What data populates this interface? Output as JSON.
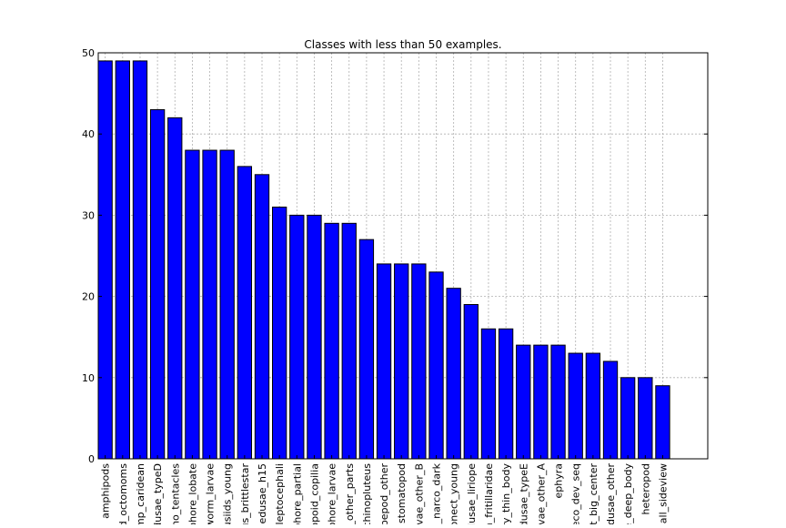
{
  "chart_data": {
    "type": "bar",
    "title": "Classes with less than 50 examples.",
    "xlabel": "",
    "ylabel": "",
    "ylim": [
      0,
      50
    ],
    "yticks": [
      0,
      10,
      20,
      30,
      40,
      50
    ],
    "grid": true,
    "bar_color": "#0000ff",
    "edge_color": "#000000",
    "categories": [
      "amphipods",
      "id_octomoms",
      "imp_caridean",
      "edusae_typeD",
      "_no_tentacles",
      "phore_lobate",
      "_worm_larvae",
      "usiids_young",
      "us_brittlestar",
      "medusae_h15",
      "_leptocephali",
      "phore_partial",
      "lopoid_copilia",
      "phore_larvae",
      "e_other_parts",
      "echinopluteus",
      "opepod_other",
      "stomatopod",
      "rvae_other_B",
      "e_narco_dark",
      "sonect_young",
      "edusae_liriope",
      "n_fritillaridae",
      "ery_thin_body",
      "edusae_typeE",
      "rvae_other_A",
      "ephyra",
      "neco_dev_seq",
      "st_big_center",
      "edusae_other",
      "e_deep_body",
      "heteropod",
      "mall_sideview"
    ],
    "values": [
      49,
      49,
      49,
      43,
      42,
      38,
      38,
      38,
      36,
      35,
      31,
      30,
      30,
      29,
      29,
      27,
      24,
      24,
      24,
      23,
      21,
      19,
      16,
      16,
      14,
      14,
      14,
      13,
      13,
      12,
      10,
      10,
      9
    ]
  }
}
